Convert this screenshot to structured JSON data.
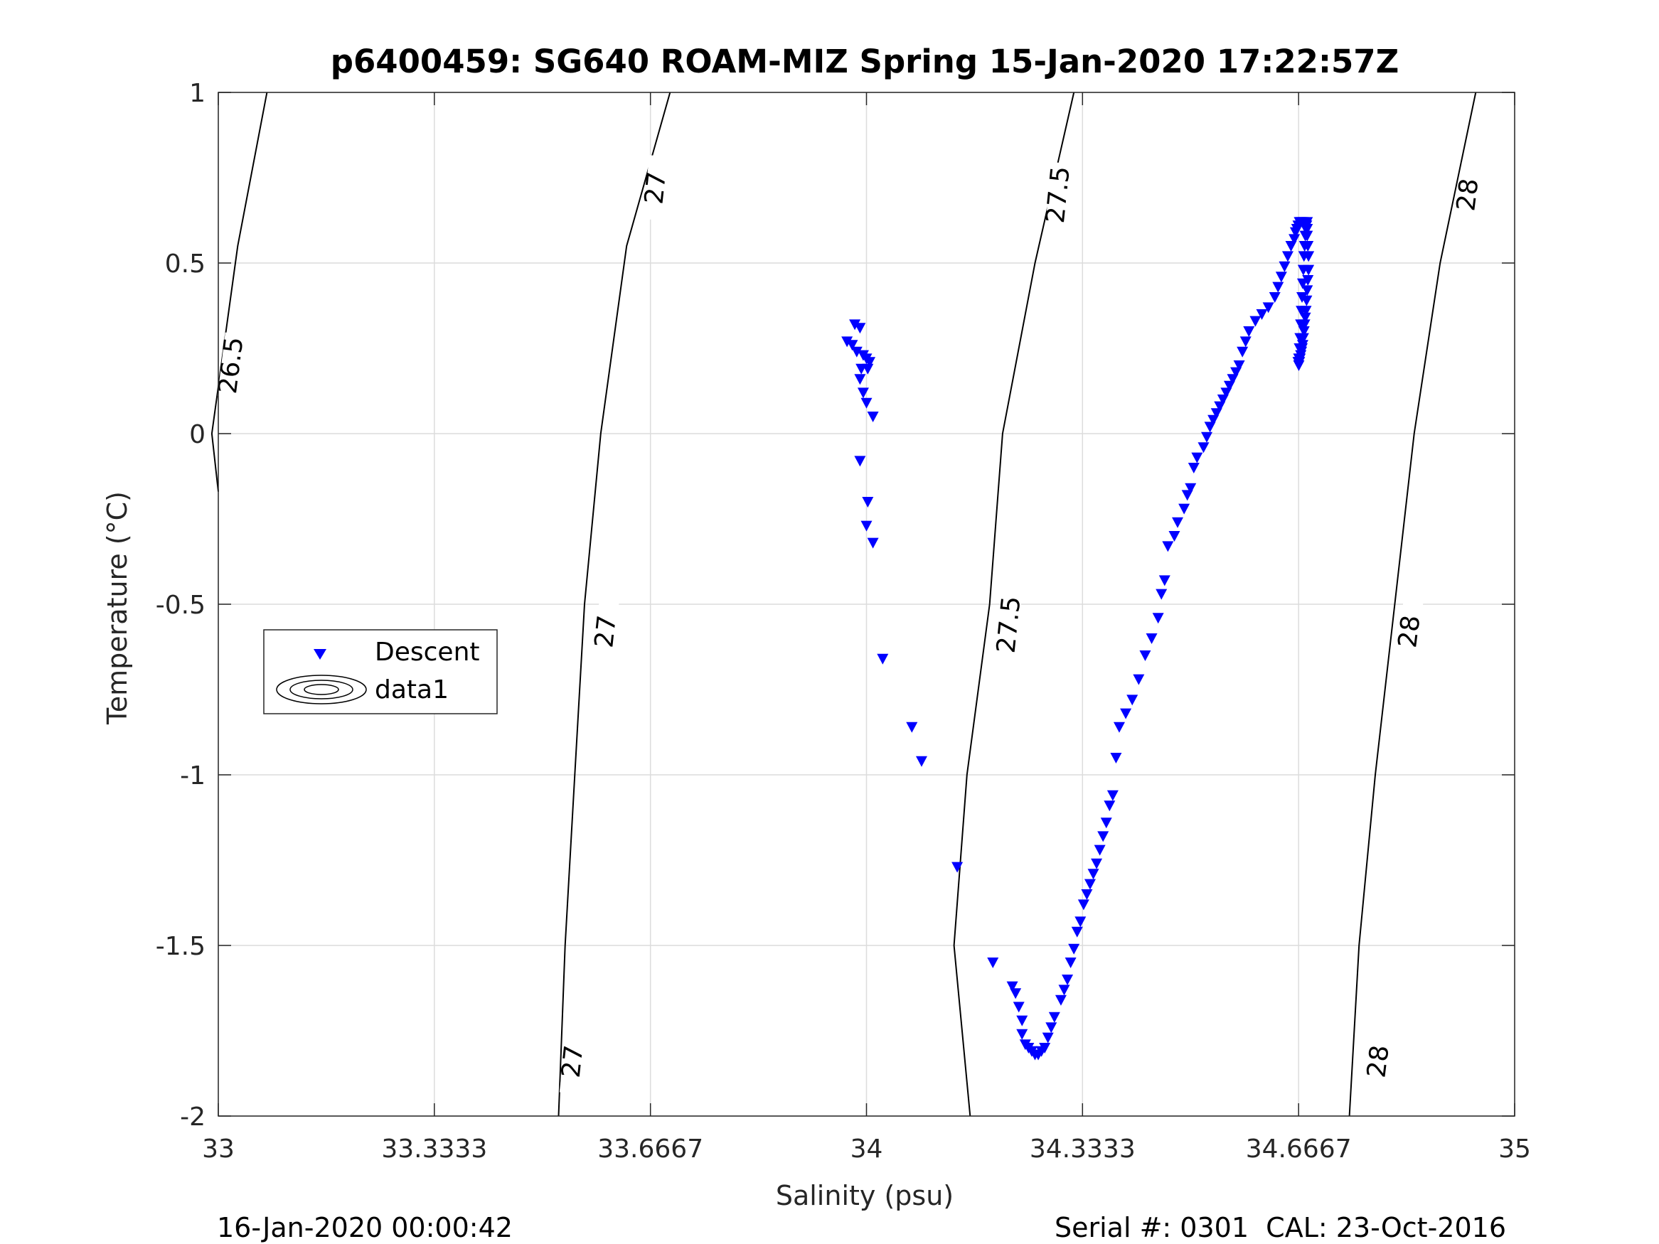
{
  "chart_data": {
    "type": "scatter",
    "title": "p6400459: SG640 ROAM-MIZ Spring 15-Jan-2020 17:22:57Z",
    "xlabel": "Salinity (psu)",
    "ylabel": "Temperature (°C)",
    "xlim": [
      33,
      35
    ],
    "ylim": [
      -2,
      1
    ],
    "x_ticks": [
      33,
      33.3333,
      33.6667,
      34,
      34.3333,
      34.6667,
      35
    ],
    "x_tick_labels": [
      "33",
      "33.3333",
      "33.6667",
      "34",
      "34.3333",
      "34.6667",
      "35"
    ],
    "y_ticks": [
      -2,
      -1.5,
      -1,
      -0.5,
      0,
      0.5,
      1
    ],
    "y_tick_labels": [
      "-2",
      "-1.5",
      "-1",
      "-0.5",
      "0",
      "0.5",
      "1"
    ],
    "grid": true,
    "legend": {
      "placement": "left-middle",
      "entries": [
        "Descent",
        "data1"
      ]
    },
    "footer_left": "16-Jan-2020 00:00:42",
    "footer_right": "Serial #: 0301  CAL: 23-Oct-2016",
    "density_contours": [
      {
        "level": "26.5",
        "points": [
          [
            33.075,
            1.0
          ],
          [
            33.03,
            0.55
          ],
          [
            32.99,
            0.0
          ],
          [
            33.0,
            -0.17
          ]
        ],
        "labels": [
          {
            "text": "26.5",
            "x": 33.02,
            "y": 0.2
          }
        ]
      },
      {
        "level": "27",
        "points": [
          [
            33.697,
            1.0
          ],
          [
            33.63,
            0.55
          ],
          [
            33.59,
            0.0
          ],
          [
            33.565,
            -0.5
          ],
          [
            33.55,
            -1.0
          ],
          [
            33.535,
            -1.5
          ],
          [
            33.525,
            -2.0
          ]
        ],
        "labels": [
          {
            "text": "27",
            "x": 33.675,
            "y": 0.72
          },
          {
            "text": "27",
            "x": 33.598,
            "y": -0.58
          },
          {
            "text": "27",
            "x": 33.547,
            "y": -1.84
          }
        ]
      },
      {
        "level": "27.5",
        "points": [
          [
            34.32,
            1.0
          ],
          [
            34.26,
            0.5
          ],
          [
            34.21,
            0.0
          ],
          [
            34.19,
            -0.5
          ],
          [
            34.155,
            -1.0
          ],
          [
            34.135,
            -1.5
          ],
          [
            34.16,
            -2.0
          ]
        ],
        "labels": [
          {
            "text": "27.5",
            "x": 34.296,
            "y": 0.7
          },
          {
            "text": "27.5",
            "x": 34.22,
            "y": -0.56
          }
        ]
      },
      {
        "level": "28",
        "points": [
          [
            34.94,
            1.0
          ],
          [
            34.885,
            0.5
          ],
          [
            34.845,
            0.0
          ],
          [
            34.815,
            -0.5
          ],
          [
            34.785,
            -1.0
          ],
          [
            34.76,
            -1.5
          ],
          [
            34.745,
            -2.0
          ]
        ],
        "labels": [
          {
            "text": "28",
            "x": 34.928,
            "y": 0.7
          },
          {
            "text": "28",
            "x": 34.838,
            "y": -0.58
          },
          {
            "text": "28",
            "x": 34.79,
            "y": -1.84
          }
        ]
      }
    ],
    "series": [
      {
        "name": "Descent",
        "marker": "triangle-down",
        "color": "#0000ff",
        "x": [
          33.97,
          33.978,
          33.982,
          33.99,
          33.985,
          33.995,
          34.0,
          33.992,
          34.002,
          33.99,
          34.005,
          33.995,
          34.0,
          34.01,
          33.99,
          34.002,
          34.0,
          34.01,
          34.025,
          34.07,
          34.085,
          34.14,
          34.195,
          34.225,
          34.23,
          34.235,
          34.24,
          34.24,
          34.245,
          34.25,
          34.255,
          34.26,
          34.265,
          34.27,
          34.275,
          34.28,
          34.285,
          34.29,
          34.3,
          34.305,
          34.31,
          34.315,
          34.32,
          34.325,
          34.33,
          34.335,
          34.34,
          34.345,
          34.35,
          34.355,
          34.36,
          34.365,
          34.37,
          34.375,
          34.38,
          34.385,
          34.39,
          34.4,
          34.41,
          34.42,
          34.43,
          34.44,
          34.45,
          34.455,
          34.46,
          34.465,
          34.475,
          34.48,
          34.49,
          34.495,
          34.5,
          34.505,
          34.51,
          34.52,
          34.525,
          34.53,
          34.535,
          34.54,
          34.545,
          34.55,
          34.555,
          34.56,
          34.565,
          34.57,
          34.575,
          34.58,
          34.585,
          34.59,
          34.6,
          34.61,
          34.62,
          34.63,
          34.635,
          34.64,
          34.645,
          34.65,
          34.655,
          34.66,
          34.662,
          34.664,
          34.666,
          34.668,
          34.67,
          34.672,
          34.674,
          34.676,
          34.678,
          34.68,
          34.681,
          34.682,
          34.682,
          34.681,
          34.68,
          34.679,
          34.678,
          34.677,
          34.676,
          34.675,
          34.674,
          34.673,
          34.672,
          34.671,
          34.67,
          34.669,
          34.668,
          34.667,
          34.667,
          34.666,
          34.667,
          34.668,
          34.669,
          34.67,
          34.671,
          34.672,
          34.673,
          34.674,
          34.675,
          34.676,
          34.677,
          34.678,
          34.679,
          34.68,
          34.68
        ],
        "y": [
          0.27,
          0.26,
          0.32,
          0.31,
          0.24,
          0.23,
          0.22,
          0.19,
          0.19,
          0.16,
          0.21,
          0.12,
          0.09,
          0.05,
          -0.08,
          -0.2,
          -0.27,
          -0.32,
          -0.66,
          -0.86,
          -0.96,
          -1.27,
          -1.55,
          -1.62,
          -1.64,
          -1.68,
          -1.72,
          -1.76,
          -1.79,
          -1.8,
          -1.81,
          -1.82,
          -1.82,
          -1.81,
          -1.8,
          -1.77,
          -1.74,
          -1.71,
          -1.66,
          -1.63,
          -1.6,
          -1.55,
          -1.51,
          -1.46,
          -1.43,
          -1.38,
          -1.35,
          -1.32,
          -1.29,
          -1.26,
          -1.22,
          -1.18,
          -1.14,
          -1.09,
          -1.06,
          -0.95,
          -0.86,
          -0.82,
          -0.78,
          -0.72,
          -0.65,
          -0.6,
          -0.54,
          -0.47,
          -0.43,
          -0.33,
          -0.3,
          -0.26,
          -0.22,
          -0.18,
          -0.16,
          -0.1,
          -0.07,
          -0.04,
          -0.01,
          0.02,
          0.04,
          0.06,
          0.08,
          0.1,
          0.12,
          0.14,
          0.16,
          0.18,
          0.2,
          0.24,
          0.27,
          0.3,
          0.33,
          0.35,
          0.37,
          0.4,
          0.43,
          0.46,
          0.49,
          0.52,
          0.55,
          0.57,
          0.59,
          0.6,
          0.61,
          0.62,
          0.62,
          0.62,
          0.62,
          0.61,
          0.6,
          0.58,
          0.55,
          0.52,
          0.48,
          0.45,
          0.42,
          0.39,
          0.36,
          0.34,
          0.32,
          0.3,
          0.28,
          0.26,
          0.25,
          0.24,
          0.23,
          0.22,
          0.21,
          0.21,
          0.2,
          0.21,
          0.22,
          0.25,
          0.28,
          0.32,
          0.36,
          0.4,
          0.44,
          0.48,
          0.52,
          0.55,
          0.58,
          0.6,
          0.61,
          0.62,
          0.6
        ]
      }
    ]
  }
}
